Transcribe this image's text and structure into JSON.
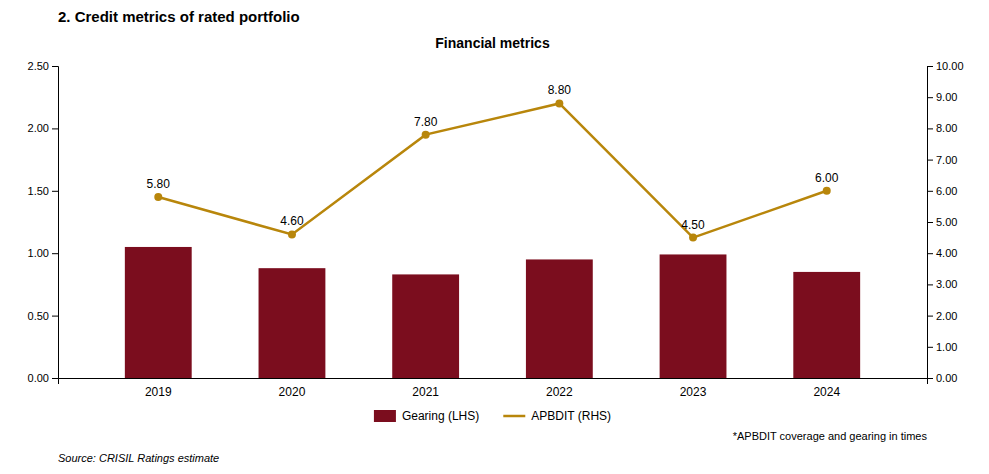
{
  "chart_data": {
    "type": "bar",
    "title": "2. Credit metrics of rated portfolio",
    "subtitle": "Financial metrics",
    "categories": [
      "2019",
      "2020",
      "2021",
      "2022",
      "2023",
      "2024"
    ],
    "series": [
      {
        "name": "Gearing (LHS)",
        "type": "bar",
        "color": "#7B0D1E",
        "values": [
          1.05,
          0.88,
          0.83,
          0.95,
          0.99,
          0.85
        ]
      },
      {
        "name": "APBDIT (RHS)",
        "type": "line",
        "color": "#B8860B",
        "marker": "circle",
        "axis": "y2",
        "data_labels": true,
        "values": [
          5.8,
          4.6,
          7.8,
          8.8,
          4.5,
          6.0
        ],
        "value_labels": [
          "5.80",
          "4.60",
          "7.80",
          "8.80",
          "4.50",
          "6.00"
        ]
      }
    ],
    "ylim": [
      0,
      2.5
    ],
    "yticks": [
      {
        "value": 0.0,
        "label": "0.00"
      },
      {
        "value": 0.5,
        "label": "0.50"
      },
      {
        "value": 1.0,
        "label": "1.00"
      },
      {
        "value": 1.5,
        "label": "1.50"
      },
      {
        "value": 2.0,
        "label": "2.00"
      },
      {
        "value": 2.5,
        "label": "2.50"
      }
    ],
    "y2lim": [
      0,
      10
    ],
    "y2ticks": [
      {
        "value": 0,
        "label": "0.00"
      },
      {
        "value": 1,
        "label": "1.00"
      },
      {
        "value": 2,
        "label": "2.00"
      },
      {
        "value": 3,
        "label": "3.00"
      },
      {
        "value": 4,
        "label": "4.00"
      },
      {
        "value": 5,
        "label": "5.00"
      },
      {
        "value": 6,
        "label": "6.00"
      },
      {
        "value": 7,
        "label": "7.00"
      },
      {
        "value": 8,
        "label": "8.00"
      },
      {
        "value": 9,
        "label": "9.00"
      },
      {
        "value": 10,
        "label": "10.00"
      }
    ],
    "grid": false,
    "legend": "bottom",
    "annotations": [
      "*APBDIT coverage and gearing in times",
      "Source: CRISIL Ratings estimate"
    ]
  }
}
